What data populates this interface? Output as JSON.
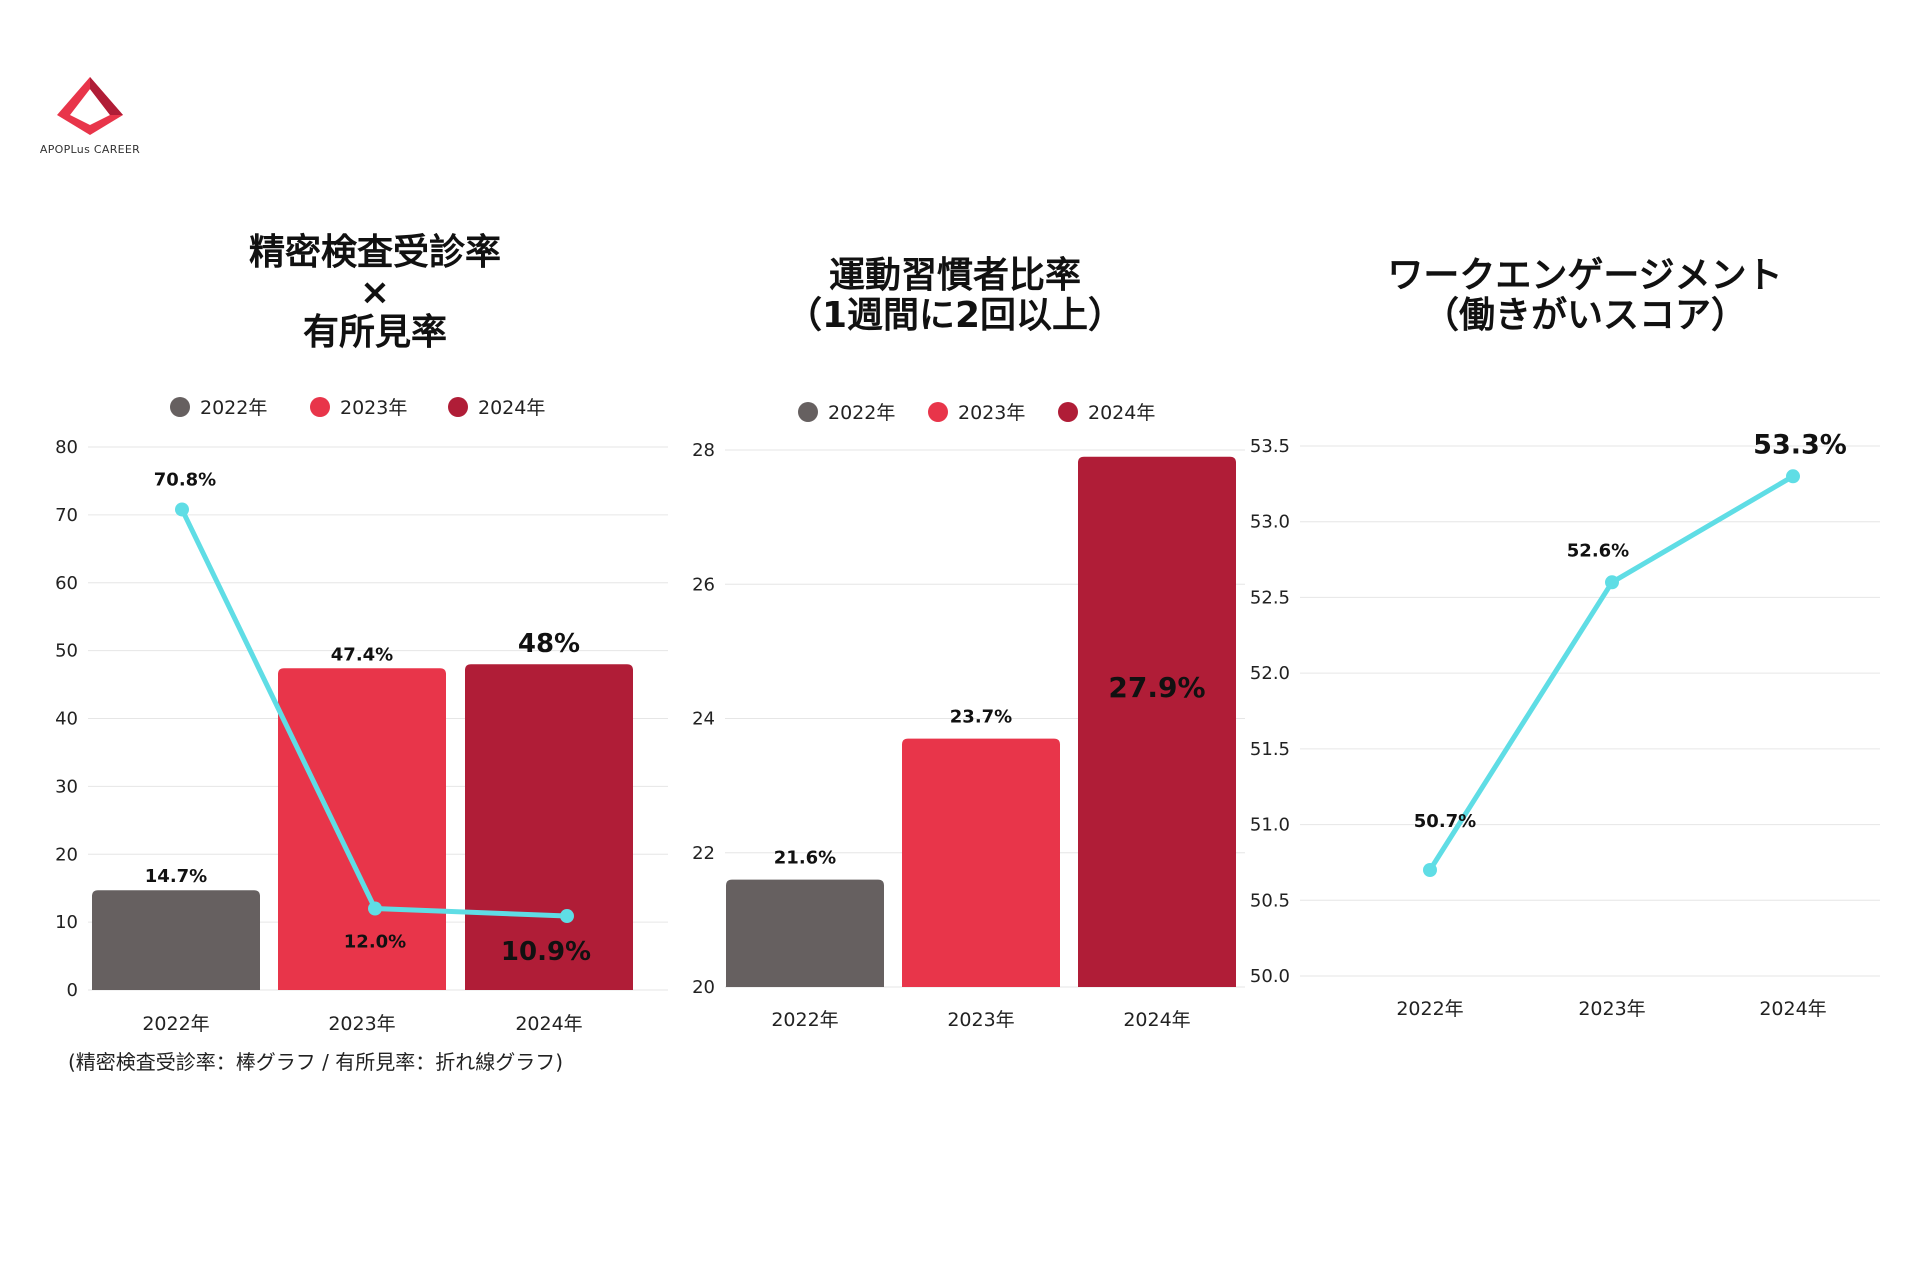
{
  "logo": {
    "text": "APOPLus CAREER"
  },
  "charts": [
    {
      "title_lines": [
        "精密検査受診率",
        "×",
        "有所見率"
      ],
      "footnote": "(精密検査受診率：棒グラフ / 有所見率：折れ線グラフ)"
    },
    {
      "title_lines": [
        "運動習慣者比率",
        "（1週間に2回以上）"
      ]
    },
    {
      "title_lines": [
        "ワークエンゲージメント",
        "（働きがいスコア）"
      ]
    }
  ],
  "colors": {
    "y2022": "#666060",
    "y2023": "#e8354a",
    "y2024": "#b01d37",
    "line": "#5fdde5",
    "grid": "#e6e6e6"
  },
  "chart_data": [
    {
      "type": "bar+line",
      "title": "精密検査受診率 × 有所見率",
      "categories": [
        "2022年",
        "2023年",
        "2024年"
      ],
      "legend": [
        "2022年",
        "2023年",
        "2024年"
      ],
      "ylim": [
        0,
        80
      ],
      "yticks": [
        "0",
        "10",
        "20",
        "30",
        "40",
        "50",
        "60",
        "70",
        "80"
      ],
      "series": [
        {
          "name": "精密検査受診率",
          "kind": "bar",
          "values": [
            14.7,
            47.4,
            48
          ],
          "labels": [
            "14.7%",
            "47.4%",
            "48%"
          ]
        },
        {
          "name": "有所見率",
          "kind": "line",
          "values": [
            70.8,
            12.0,
            10.9
          ],
          "labels": [
            "70.8%",
            "12.0%",
            "10.9%"
          ]
        }
      ]
    },
    {
      "type": "bar",
      "title": "運動習慣者比率（1週間に2回以上）",
      "categories": [
        "2022年",
        "2023年",
        "2024年"
      ],
      "legend": [
        "2022年",
        "2023年",
        "2024年"
      ],
      "ylim": [
        20,
        28
      ],
      "yticks": [
        "20",
        "22",
        "24",
        "26",
        "28"
      ],
      "values": [
        21.6,
        23.7,
        27.9
      ],
      "labels": [
        "21.6%",
        "23.7%",
        "27.9%"
      ]
    },
    {
      "type": "line",
      "title": "ワークエンゲージメント（働きがいスコア）",
      "categories": [
        "2022年",
        "2023年",
        "2024年"
      ],
      "ylim": [
        50.0,
        53.5
      ],
      "yticks": [
        "50.0",
        "50.5",
        "51.0",
        "51.5",
        "52.0",
        "52.5",
        "53.0",
        "53.5"
      ],
      "values": [
        50.7,
        52.6,
        53.3
      ],
      "labels": [
        "50.7%",
        "52.6%",
        "53.3%"
      ]
    }
  ]
}
